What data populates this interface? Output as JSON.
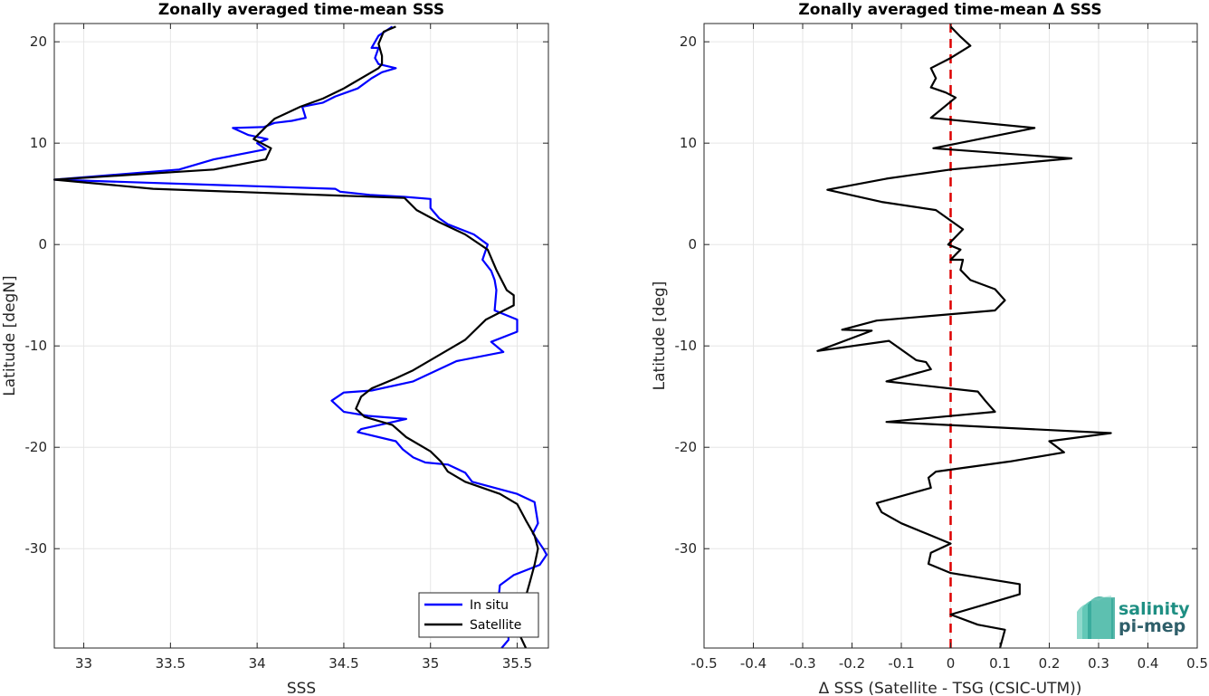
{
  "chart_data": [
    {
      "type": "line",
      "title": "Zonally averaged time-mean SSS",
      "xlabel": "SSS",
      "ylabel": "Latitude [degN]",
      "xlim": [
        32.83,
        35.68
      ],
      "ylim": [
        -39.8,
        21.8
      ],
      "xticks": [
        "33",
        "33.5",
        "34",
        "34.5",
        "35",
        "35.5"
      ],
      "xtick_values": [
        33,
        33.5,
        34,
        34.5,
        35,
        35.5
      ],
      "yticks": [
        "20",
        "10",
        "0",
        "-10",
        "-20",
        "-30"
      ],
      "ytick_values": [
        20,
        10,
        0,
        -10,
        -20,
        -30
      ],
      "grid": true,
      "legend_position": "bottom-right",
      "series": [
        {
          "name": "In situ",
          "color": "#0000ff",
          "points": [
            [
              34.78,
              21.5
            ],
            [
              34.7,
              20.6
            ],
            [
              34.66,
              19.4
            ],
            [
              34.7,
              19.4
            ],
            [
              34.68,
              18.4
            ],
            [
              34.7,
              17.8
            ],
            [
              34.8,
              17.4
            ],
            [
              34.72,
              17.0
            ],
            [
              34.66,
              16.4
            ],
            [
              34.58,
              15.4
            ],
            [
              34.45,
              14.6
            ],
            [
              34.38,
              14.0
            ],
            [
              34.26,
              13.6
            ],
            [
              34.28,
              12.5
            ],
            [
              34.2,
              12.2
            ],
            [
              34.1,
              12.0
            ],
            [
              34.04,
              11.6
            ],
            [
              33.86,
              11.5
            ],
            [
              33.95,
              10.8
            ],
            [
              34.06,
              10.4
            ],
            [
              34.0,
              10.0
            ],
            [
              34.05,
              9.4
            ],
            [
              33.75,
              8.4
            ],
            [
              33.55,
              7.4
            ],
            [
              32.83,
              6.4
            ],
            [
              34.45,
              5.5
            ],
            [
              34.48,
              5.2
            ],
            [
              34.65,
              4.9
            ],
            [
              34.85,
              4.7
            ],
            [
              35.0,
              4.5
            ],
            [
              35.0,
              3.6
            ],
            [
              35.05,
              2.6
            ],
            [
              35.1,
              2.0
            ],
            [
              35.25,
              1.0
            ],
            [
              35.33,
              0.0
            ],
            [
              35.3,
              -1.5
            ],
            [
              35.35,
              -2.6
            ],
            [
              35.37,
              -3.5
            ],
            [
              35.38,
              -4.5
            ],
            [
              35.37,
              -6.5
            ],
            [
              35.5,
              -7.4
            ],
            [
              35.5,
              -8.6
            ],
            [
              35.35,
              -9.6
            ],
            [
              35.42,
              -10.6
            ],
            [
              35.15,
              -11.5
            ],
            [
              34.9,
              -13.5
            ],
            [
              34.66,
              -14.4
            ],
            [
              34.5,
              -14.6
            ],
            [
              34.43,
              -15.4
            ],
            [
              34.5,
              -16.5
            ],
            [
              34.64,
              -16.9
            ],
            [
              34.86,
              -17.2
            ],
            [
              34.6,
              -18.2
            ],
            [
              34.58,
              -18.5
            ],
            [
              34.8,
              -19.4
            ],
            [
              34.84,
              -20.2
            ],
            [
              34.9,
              -21.0
            ],
            [
              34.97,
              -21.5
            ],
            [
              35.1,
              -21.7
            ],
            [
              35.2,
              -22.5
            ],
            [
              35.24,
              -23.4
            ],
            [
              35.5,
              -24.6
            ],
            [
              35.6,
              -25.4
            ],
            [
              35.62,
              -27.5
            ],
            [
              35.59,
              -28.5
            ],
            [
              35.65,
              -30.0
            ],
            [
              35.67,
              -30.6
            ],
            [
              35.63,
              -31.6
            ],
            [
              35.48,
              -32.6
            ],
            [
              35.4,
              -33.6
            ],
            [
              35.38,
              -37.0
            ],
            [
              35.45,
              -38.5
            ],
            [
              35.45,
              -39.0
            ],
            [
              35.41,
              -39.8
            ]
          ]
        },
        {
          "name": "Satellite",
          "color": "#000000",
          "points": [
            [
              34.8,
              21.5
            ],
            [
              34.73,
              21.0
            ],
            [
              34.7,
              19.8
            ],
            [
              34.72,
              18.6
            ],
            [
              34.72,
              17.8
            ],
            [
              34.7,
              17.4
            ],
            [
              34.5,
              15.4
            ],
            [
              34.38,
              14.4
            ],
            [
              34.25,
              13.6
            ],
            [
              34.1,
              12.4
            ],
            [
              34.05,
              11.6
            ],
            [
              33.98,
              10.4
            ],
            [
              34.08,
              9.5
            ],
            [
              34.05,
              8.4
            ],
            [
              33.75,
              7.4
            ],
            [
              32.83,
              6.4
            ],
            [
              33.4,
              5.5
            ],
            [
              34.85,
              4.6
            ],
            [
              34.92,
              3.4
            ],
            [
              35.05,
              2.2
            ],
            [
              35.2,
              1.0
            ],
            [
              35.33,
              -0.5
            ],
            [
              35.38,
              -2.5
            ],
            [
              35.44,
              -4.5
            ],
            [
              35.48,
              -5.0
            ],
            [
              35.48,
              -6.0
            ],
            [
              35.32,
              -7.4
            ],
            [
              35.2,
              -9.4
            ],
            [
              35.1,
              -10.4
            ],
            [
              34.9,
              -12.4
            ],
            [
              34.8,
              -13.2
            ],
            [
              34.66,
              -14.2
            ],
            [
              34.6,
              -15.0
            ],
            [
              34.57,
              -16.2
            ],
            [
              34.62,
              -17.0
            ],
            [
              34.78,
              -17.8
            ],
            [
              34.86,
              -19.0
            ],
            [
              35.0,
              -20.4
            ],
            [
              35.06,
              -21.4
            ],
            [
              35.1,
              -22.4
            ],
            [
              35.2,
              -23.4
            ],
            [
              35.4,
              -24.6
            ],
            [
              35.5,
              -25.6
            ],
            [
              35.55,
              -27.2
            ],
            [
              35.6,
              -28.7
            ],
            [
              35.62,
              -30.0
            ],
            [
              35.6,
              -31.6
            ],
            [
              35.57,
              -33.5
            ],
            [
              35.52,
              -36.5
            ],
            [
              35.5,
              -38.0
            ],
            [
              35.55,
              -39.8
            ]
          ]
        }
      ]
    },
    {
      "type": "line",
      "title": "Zonally averaged time-mean Δ SSS",
      "xlabel": "Δ SSS (Satellite - TSG (CSIC-UTM))",
      "ylabel": "Latitude [deg]",
      "xlim": [
        -0.5,
        0.5
      ],
      "ylim": [
        -39.8,
        21.8
      ],
      "xticks": [
        "-0.5",
        "-0.4",
        "-0.3",
        "-0.2",
        "-0.1",
        "0",
        "0.1",
        "0.2",
        "0.3",
        "0.4",
        "0.5"
      ],
      "xtick_values": [
        -0.5,
        -0.4,
        -0.3,
        -0.2,
        -0.1,
        0,
        0.1,
        0.2,
        0.3,
        0.4,
        0.5
      ],
      "yticks": [
        "20",
        "10",
        "0",
        "-10",
        "-20",
        "-30"
      ],
      "ytick_values": [
        20,
        10,
        0,
        -10,
        -20,
        -30
      ],
      "grid": true,
      "reference_line": {
        "x": 0,
        "color": "#dd0000",
        "style": "dashed"
      },
      "series": [
        {
          "color": "#000000",
          "points": [
            [
              0.0,
              21.5
            ],
            [
              0.02,
              20.5
            ],
            [
              0.04,
              19.6
            ],
            [
              0.0,
              18.4
            ],
            [
              -0.04,
              17.4
            ],
            [
              -0.03,
              16.4
            ],
            [
              -0.04,
              15.5
            ],
            [
              -0.01,
              15.0
            ],
            [
              0.01,
              14.5
            ],
            [
              -0.04,
              12.5
            ],
            [
              0.17,
              11.5
            ],
            [
              -0.035,
              9.5
            ],
            [
              0.245,
              8.5
            ],
            [
              0.0,
              7.4
            ],
            [
              -0.13,
              6.5
            ],
            [
              -0.25,
              5.4
            ],
            [
              -0.14,
              4.2
            ],
            [
              -0.03,
              3.4
            ],
            [
              0.025,
              1.5
            ],
            [
              -0.005,
              0.0
            ],
            [
              0.02,
              -0.5
            ],
            [
              0.0,
              -1.5
            ],
            [
              0.025,
              -1.5
            ],
            [
              0.02,
              -2.5
            ],
            [
              0.04,
              -3.5
            ],
            [
              0.09,
              -4.4
            ],
            [
              0.11,
              -5.5
            ],
            [
              0.09,
              -6.5
            ],
            [
              -0.15,
              -7.5
            ],
            [
              -0.22,
              -8.4
            ],
            [
              -0.16,
              -8.5
            ],
            [
              -0.27,
              -10.5
            ],
            [
              -0.125,
              -9.5
            ],
            [
              -0.07,
              -11.4
            ],
            [
              -0.05,
              -11.6
            ],
            [
              -0.04,
              -12.3
            ],
            [
              -0.13,
              -13.5
            ],
            [
              0.055,
              -14.5
            ],
            [
              0.07,
              -15.4
            ],
            [
              0.09,
              -16.5
            ],
            [
              -0.13,
              -17.5
            ],
            [
              0.325,
              -18.6
            ],
            [
              0.2,
              -19.4
            ],
            [
              0.23,
              -20.5
            ],
            [
              0.12,
              -21.4
            ],
            [
              -0.03,
              -22.4
            ],
            [
              -0.045,
              -23.0
            ],
            [
              -0.04,
              -24.0
            ],
            [
              -0.15,
              -25.5
            ],
            [
              -0.14,
              -26.4
            ],
            [
              -0.1,
              -27.5
            ],
            [
              -0.05,
              -28.5
            ],
            [
              0.0,
              -29.5
            ],
            [
              -0.04,
              -30.4
            ],
            [
              -0.045,
              -31.5
            ],
            [
              0.0,
              -32.4
            ],
            [
              0.14,
              -33.5
            ],
            [
              0.14,
              -34.5
            ],
            [
              0.07,
              -35.5
            ],
            [
              0.0,
              -36.5
            ],
            [
              0.055,
              -37.5
            ],
            [
              0.11,
              -38.0
            ],
            [
              0.1,
              -39.8
            ]
          ]
        }
      ]
    }
  ],
  "legend": {
    "items": [
      {
        "label": "In situ",
        "color": "#0000ff"
      },
      {
        "label": "Satellite",
        "color": "#000000"
      }
    ]
  },
  "logo": {
    "line1": "salinity",
    "line2": "pi-mep",
    "icon": "salinity-waves-logo"
  }
}
